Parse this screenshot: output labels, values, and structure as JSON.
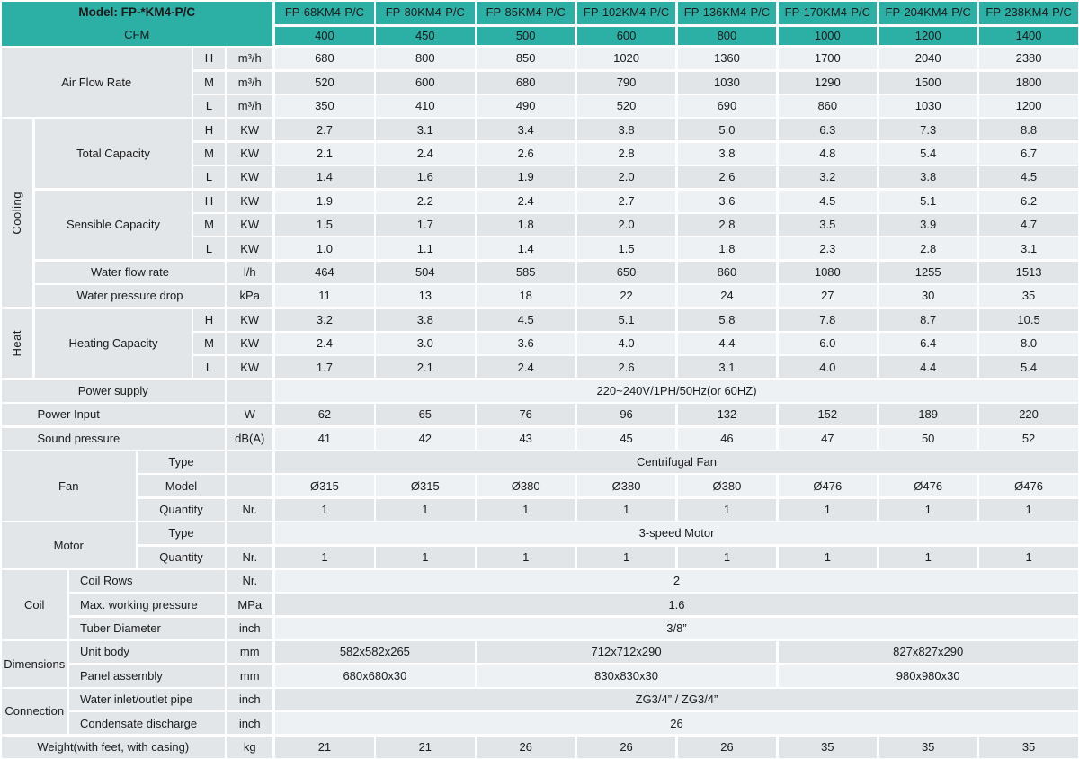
{
  "header": {
    "model_label": "Model: FP-*KM4-P/C",
    "cfm_label": "CFM",
    "models": [
      "FP-68KM4-P/C",
      "FP-80KM4-P/C",
      "FP-85KM4-P/C",
      "FP-102KM4-P/C",
      "FP-136KM4-P/C",
      "FP-170KM4-P/C",
      "FP-204KM4-P/C",
      "FP-238KM4-P/C"
    ],
    "cfm": [
      "400",
      "450",
      "500",
      "600",
      "800",
      "1000",
      "1200",
      "1400"
    ]
  },
  "sections": [
    {
      "name": "air-flow-rate",
      "label": "Air Flow Rate",
      "kind": "widest",
      "row": 0,
      "nrows": 3
    },
    {
      "name": "cooling",
      "label": "Cooling",
      "kind": "vertical",
      "row": 3,
      "nrows": 8
    },
    {
      "name": "total-capacity",
      "label": "Total Capacity",
      "kind": "capacity",
      "row": 3,
      "nrows": 3
    },
    {
      "name": "sensible-capacity",
      "label": "Sensible Capacity",
      "kind": "capacity",
      "row": 6,
      "nrows": 3
    },
    {
      "name": "heat",
      "label": "Heat",
      "kind": "vertical",
      "row": 11,
      "nrows": 3
    },
    {
      "name": "heating-capacity",
      "label": "Heating Capacity",
      "kind": "capacity",
      "row": 11,
      "nrows": 3
    },
    {
      "name": "fan",
      "label": "Fan",
      "kind": "group-mid",
      "row": 17,
      "nrows": 3
    },
    {
      "name": "motor",
      "label": "Motor",
      "kind": "group-mid",
      "row": 20,
      "nrows": 2
    },
    {
      "name": "coil",
      "label": "Coil",
      "kind": "group-narrow",
      "row": 22,
      "nrows": 3
    },
    {
      "name": "dimensions",
      "label": "Dimensions",
      "kind": "group-narrow",
      "row": 25,
      "nrows": 2
    },
    {
      "name": "connection",
      "label": "Connection",
      "kind": "group-narrow",
      "row": 27,
      "nrows": 2
    }
  ],
  "rows": [
    {
      "name": "air-flow-h",
      "label": "H",
      "kind": "hml",
      "unit": "m³/h",
      "values": [
        "680",
        "800",
        "850",
        "1020",
        "1360",
        "1700",
        "2040",
        "2380"
      ]
    },
    {
      "name": "air-flow-m",
      "label": "M",
      "kind": "hml",
      "unit": "m³/h",
      "values": [
        "520",
        "600",
        "680",
        "790",
        "1030",
        "1290",
        "1500",
        "1800"
      ]
    },
    {
      "name": "air-flow-l",
      "label": "L",
      "kind": "hml",
      "unit": "m³/h",
      "values": [
        "350",
        "410",
        "490",
        "520",
        "690",
        "860",
        "1030",
        "1200"
      ]
    },
    {
      "name": "total-capacity-h",
      "label": "H",
      "kind": "hml",
      "unit": "KW",
      "values": [
        "2.7",
        "3.1",
        "3.4",
        "3.8",
        "5.0",
        "6.3",
        "7.3",
        "8.8"
      ]
    },
    {
      "name": "total-capacity-m",
      "label": "M",
      "kind": "hml",
      "unit": "KW",
      "values": [
        "2.1",
        "2.4",
        "2.6",
        "2.8",
        "3.8",
        "4.8",
        "5.4",
        "6.7"
      ]
    },
    {
      "name": "total-capacity-l",
      "label": "L",
      "kind": "hml",
      "unit": "KW",
      "values": [
        "1.4",
        "1.6",
        "1.9",
        "2.0",
        "2.6",
        "3.2",
        "3.8",
        "4.5"
      ]
    },
    {
      "name": "sensible-capacity-h",
      "label": "H",
      "kind": "hml",
      "unit": "KW",
      "values": [
        "1.9",
        "2.2",
        "2.4",
        "2.7",
        "3.6",
        "4.5",
        "5.1",
        "6.2"
      ]
    },
    {
      "name": "sensible-capacity-m",
      "label": "M",
      "kind": "hml",
      "unit": "KW",
      "values": [
        "1.5",
        "1.7",
        "1.8",
        "2.0",
        "2.8",
        "3.5",
        "3.9",
        "4.7"
      ]
    },
    {
      "name": "sensible-capacity-l",
      "label": "L",
      "kind": "hml",
      "unit": "KW",
      "values": [
        "1.0",
        "1.1",
        "1.4",
        "1.5",
        "1.8",
        "2.3",
        "2.8",
        "3.1"
      ]
    },
    {
      "name": "water-flow-rate",
      "label": "Water flow rate",
      "kind": "wide",
      "unit": "l/h",
      "values": [
        "464",
        "504",
        "585",
        "650",
        "860",
        "1080",
        "1255",
        "1513"
      ]
    },
    {
      "name": "water-pressure-drop",
      "label": "Water pressure drop",
      "kind": "wide",
      "unit": "kPa",
      "values": [
        "11",
        "13",
        "18",
        "22",
        "24",
        "27",
        "30",
        "35"
      ]
    },
    {
      "name": "heating-capacity-h",
      "label": "H",
      "kind": "hml",
      "unit": "KW",
      "values": [
        "3.2",
        "3.8",
        "4.5",
        "5.1",
        "5.8",
        "7.8",
        "8.7",
        "10.5"
      ]
    },
    {
      "name": "heating-capacity-m",
      "label": "M",
      "kind": "hml",
      "unit": "KW",
      "values": [
        "2.4",
        "3.0",
        "3.6",
        "4.0",
        "4.4",
        "6.0",
        "6.4",
        "8.0"
      ]
    },
    {
      "name": "heating-capacity-l",
      "label": "L",
      "kind": "hml",
      "unit": "KW",
      "values": [
        "1.7",
        "2.1",
        "2.4",
        "2.6",
        "3.1",
        "4.0",
        "4.4",
        "5.4"
      ]
    },
    {
      "name": "power-supply",
      "label": "Power supply",
      "kind": "full-center",
      "unit": "",
      "spans": [
        {
          "text": "220~240V/1PH/50Hz(or 60HZ)",
          "cols": 8
        }
      ]
    },
    {
      "name": "power-input",
      "label": "Power Input",
      "kind": "full-left",
      "unit": "W",
      "values": [
        "62",
        "65",
        "76",
        "96",
        "132",
        "152",
        "189",
        "220"
      ]
    },
    {
      "name": "sound-pressure",
      "label": "Sound pressure",
      "kind": "full-left",
      "unit": "dB(A)",
      "values": [
        "41",
        "42",
        "43",
        "45",
        "46",
        "47",
        "50",
        "52"
      ]
    },
    {
      "name": "fan-type",
      "label": "Type",
      "kind": "sub-mid",
      "unit": "",
      "spans": [
        {
          "text": "Centrifugal Fan",
          "cols": 8
        }
      ]
    },
    {
      "name": "fan-model",
      "label": "Model",
      "kind": "sub-mid",
      "unit": "",
      "values": [
        "Ø315",
        "Ø315",
        "Ø380",
        "Ø380",
        "Ø380",
        "Ø476",
        "Ø476",
        "Ø476"
      ]
    },
    {
      "name": "fan-quantity",
      "label": "Quantity",
      "kind": "sub-mid",
      "unit": "Nr.",
      "values": [
        "1",
        "1",
        "1",
        "1",
        "1",
        "1",
        "1",
        "1"
      ]
    },
    {
      "name": "motor-type",
      "label": "Type",
      "kind": "sub-mid",
      "unit": "",
      "spans": [
        {
          "text": "3-speed Motor",
          "cols": 8
        }
      ]
    },
    {
      "name": "motor-quantity",
      "label": "Quantity",
      "kind": "sub-mid",
      "unit": "Nr.",
      "values": [
        "1",
        "1",
        "1",
        "1",
        "1",
        "1",
        "1",
        "1"
      ]
    },
    {
      "name": "coil-rows",
      "label": "Coil Rows",
      "kind": "sub-left",
      "unit": "Nr.",
      "spans": [
        {
          "text": "2",
          "cols": 8
        }
      ]
    },
    {
      "name": "max-working-pressure",
      "label": "Max. working pressure",
      "kind": "sub-left",
      "unit": "MPa",
      "spans": [
        {
          "text": "1.6",
          "cols": 8
        }
      ]
    },
    {
      "name": "tuber-diameter",
      "label": "Tuber Diameter",
      "kind": "sub-left",
      "unit": "inch",
      "spans": [
        {
          "text": "3/8”",
          "cols": 8
        }
      ]
    },
    {
      "name": "unit-body",
      "label": "Unit body",
      "kind": "sub-left",
      "unit": "mm",
      "spans": [
        {
          "text": "582x582x265",
          "cols": 2
        },
        {
          "text": "712x712x290",
          "cols": 3
        },
        {
          "text": "827x827x290",
          "cols": 3
        }
      ]
    },
    {
      "name": "panel-assembly",
      "label": "Panel assembly",
      "kind": "sub-left",
      "unit": "mm",
      "spans": [
        {
          "text": "680x680x30",
          "cols": 2
        },
        {
          "text": "830x830x30",
          "cols": 3
        },
        {
          "text": "980x980x30",
          "cols": 3
        }
      ]
    },
    {
      "name": "water-inlet-outlet-pipe",
      "label": "Water inlet/outlet pipe",
      "kind": "sub-left",
      "unit": "inch",
      "spans": [
        {
          "text": "ZG3/4” / ZG3/4”",
          "cols": 8
        }
      ]
    },
    {
      "name": "condensate-discharge",
      "label": "Condensate discharge",
      "kind": "sub-left",
      "unit": "inch",
      "spans": [
        {
          "text": "26",
          "cols": 8
        }
      ]
    },
    {
      "name": "weight",
      "label": "Weight(with feet, with casing)",
      "kind": "full-center",
      "unit": "kg",
      "values": [
        "21",
        "21",
        "26",
        "26",
        "26",
        "35",
        "35",
        "35"
      ]
    }
  ],
  "colors": {
    "teal": "#2cb0a5",
    "label_bg": "#e3e6e9",
    "row_light": "#eef1f4",
    "row_dark": "#e2e5e8",
    "gap": "#ffffff",
    "text": "#1a1a1a"
  }
}
